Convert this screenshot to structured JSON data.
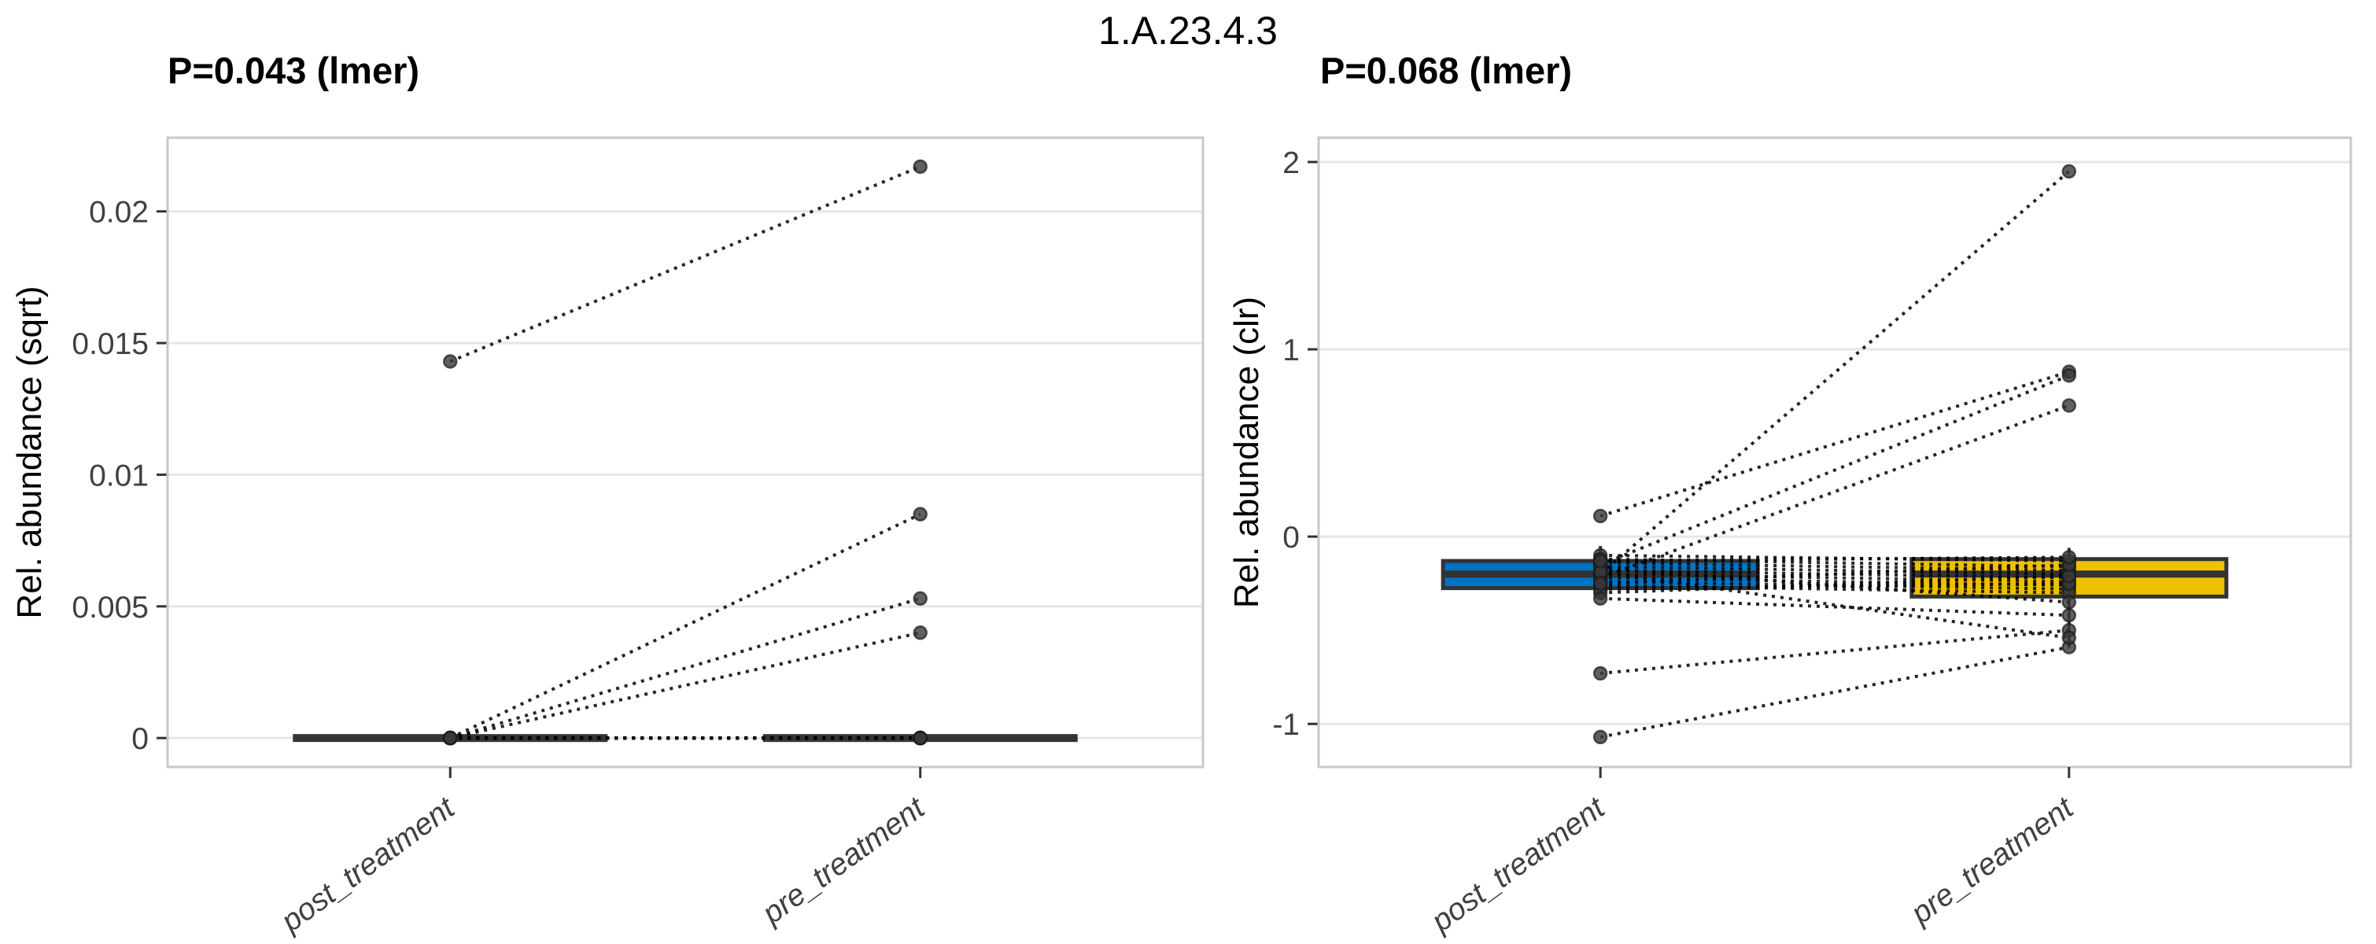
{
  "page_title": "1.A.23.4.3",
  "style": {
    "accent_blue": "#0073C2",
    "accent_yellow": "#EFC000",
    "box_border": "#333333",
    "gridline": "#E6E6E6",
    "panel_border": "#C8C8C8",
    "tick_mark": "#333333",
    "tick_text": "#404040",
    "point_fill": "#3A3A3A",
    "pair_line": "#000000"
  },
  "chart_data": [
    {
      "type": "paired-boxplot",
      "title": "P=0.043 (lmer)",
      "ylabel": "Rel. abundance (sqrt)",
      "xlabel": "",
      "categories": [
        "post_treatment",
        "pre_treatment"
      ],
      "yticks": [
        0,
        0.005,
        0.01,
        0.015,
        0.02
      ],
      "ytick_labels": [
        "0",
        "0.005",
        "0.01",
        "0.015",
        "0.02"
      ],
      "ylim": [
        -0.0011,
        0.0228
      ],
      "grid": true,
      "legend": "none",
      "boxes": [
        {
          "category": "post_treatment",
          "q1": 0,
          "median": 0,
          "q3": 0,
          "whisker_low": 0,
          "whisker_high": 0,
          "fill": "#333333",
          "collapsed": true
        },
        {
          "category": "pre_treatment",
          "q1": 0,
          "median": 0,
          "q3": 0,
          "whisker_low": 0,
          "whisker_high": 0,
          "fill": "#333333",
          "collapsed": true
        }
      ],
      "pairs": [
        [
          0.0143,
          0.0217
        ],
        [
          0,
          0.0085
        ],
        [
          0,
          0.0053
        ],
        [
          0,
          0.004
        ],
        [
          0,
          0
        ],
        [
          0,
          0
        ],
        [
          0,
          0
        ],
        [
          0,
          0
        ],
        [
          0,
          0
        ],
        [
          0,
          0
        ],
        [
          0,
          0
        ],
        [
          0,
          0
        ],
        [
          0,
          0
        ],
        [
          0,
          0
        ],
        [
          0,
          0
        ],
        [
          0,
          0
        ]
      ]
    },
    {
      "type": "paired-boxplot",
      "title": "P=0.068 (lmer)",
      "ylabel": "Rel. abundance (clr)",
      "xlabel": "",
      "categories": [
        "post_treatment",
        "pre_treatment"
      ],
      "yticks": [
        -1,
        0,
        1,
        2
      ],
      "ytick_labels": [
        "-1",
        "0",
        "1",
        "2"
      ],
      "ylim": [
        -1.23,
        2.13
      ],
      "grid": true,
      "legend": "none",
      "boxes": [
        {
          "category": "post_treatment",
          "q1": -0.275,
          "median": -0.2,
          "q3": -0.13,
          "whisker_low": -0.33,
          "whisker_high": -0.05,
          "fill": "#0073C2",
          "collapsed": false
        },
        {
          "category": "pre_treatment",
          "q1": -0.32,
          "median": -0.2,
          "q3": -0.12,
          "whisker_low": -0.59,
          "whisker_high": -0.06,
          "fill": "#EFC000",
          "collapsed": false
        }
      ],
      "pairs": [
        [
          0.11,
          0.88
        ],
        [
          -0.2,
          1.95
        ],
        [
          -0.15,
          0.86
        ],
        [
          -0.22,
          0.7
        ],
        [
          -0.73,
          -0.5
        ],
        [
          -1.07,
          -0.59
        ],
        [
          -0.1,
          -0.13
        ],
        [
          -0.12,
          -0.16
        ],
        [
          -0.14,
          -0.18
        ],
        [
          -0.16,
          -0.2
        ],
        [
          -0.18,
          -0.22
        ],
        [
          -0.2,
          -0.24
        ],
        [
          -0.22,
          -0.26
        ],
        [
          -0.24,
          -0.28
        ],
        [
          -0.26,
          -0.3
        ],
        [
          -0.28,
          -0.25
        ],
        [
          -0.3,
          -0.21
        ],
        [
          -0.33,
          -0.42
        ],
        [
          -0.17,
          -0.35
        ],
        [
          -0.19,
          -0.54
        ],
        [
          -0.25,
          -0.15
        ],
        [
          -0.13,
          -0.11
        ]
      ]
    }
  ]
}
